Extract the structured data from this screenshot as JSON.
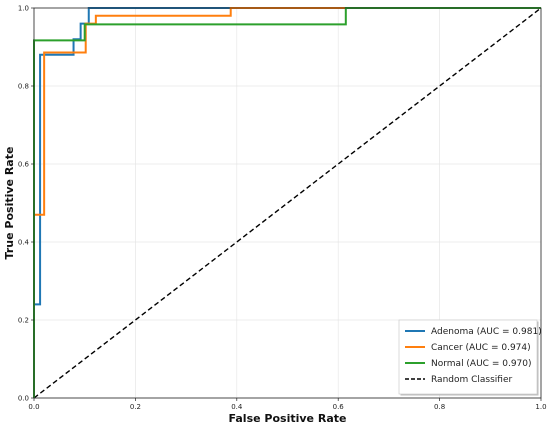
{
  "chart_data": {
    "type": "line",
    "title": "",
    "xlabel": "False Positive Rate",
    "ylabel": "True Positive Rate",
    "xlim": [
      0,
      1
    ],
    "ylim": [
      0,
      1
    ],
    "xticks": [
      "0.0",
      "0.2",
      "0.4",
      "0.6",
      "0.8",
      "1.0"
    ],
    "yticks": [
      "0.0",
      "0.2",
      "0.4",
      "0.6",
      "0.8",
      "1.0"
    ],
    "grid": true,
    "legend_position": "bottom-right",
    "series": [
      {
        "name": "Adenoma (AUC = 0.981)",
        "color": "#1f77b4",
        "dash": "",
        "x": [
          0,
          0,
          0.012,
          0.012,
          0.078,
          0.078,
          0.092,
          0.092,
          0.108,
          0.108,
          1.0
        ],
        "y": [
          0,
          0.24,
          0.24,
          0.88,
          0.88,
          0.92,
          0.92,
          0.96,
          0.96,
          1.0,
          1.0
        ]
      },
      {
        "name": "Cancer (AUC = 0.974)",
        "color": "#ff7f0e",
        "dash": "",
        "x": [
          0,
          0,
          0.02,
          0.02,
          0.102,
          0.102,
          0.122,
          0.122,
          0.388,
          0.388,
          1.0
        ],
        "y": [
          0,
          0.47,
          0.47,
          0.886,
          0.886,
          0.96,
          0.96,
          0.98,
          0.98,
          1.0,
          1.0
        ]
      },
      {
        "name": "Normal (AUC = 0.970)",
        "color": "#2ca02c",
        "dash": "",
        "x": [
          0,
          0,
          0.1,
          0.1,
          0.615,
          0.615,
          1.0
        ],
        "y": [
          0,
          0.917,
          0.917,
          0.958,
          0.958,
          1.0,
          1.0
        ]
      },
      {
        "name": "Random Classifier",
        "color": "#000000",
        "dash": "5,3",
        "x": [
          0,
          1
        ],
        "y": [
          0,
          1
        ]
      }
    ]
  }
}
